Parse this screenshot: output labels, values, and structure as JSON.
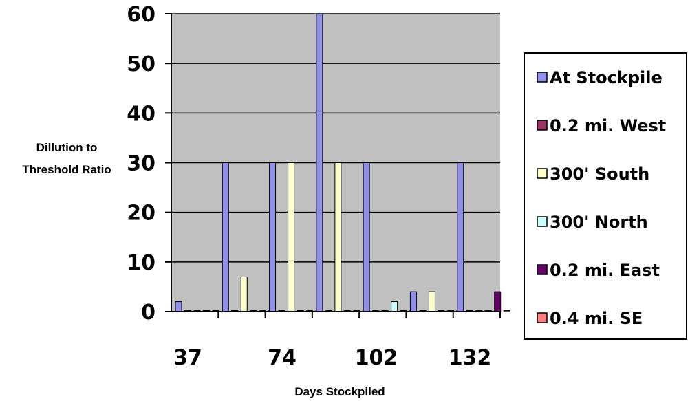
{
  "chart_data": {
    "type": "bar",
    "title": "",
    "xlabel": "Days Stockpiled",
    "ylabel": [
      "Dillution to",
      "Threshold Ratio"
    ],
    "ylim": [
      0,
      60
    ],
    "yticks": [
      0,
      10,
      20,
      30,
      40,
      50,
      60
    ],
    "xtick_labels": [
      "37",
      "74",
      "102",
      "132"
    ],
    "grid": true,
    "legend_position": "right",
    "groups": [
      "g1",
      "g2",
      "g3",
      "g4",
      "g5",
      "g6",
      "g7"
    ],
    "series": [
      {
        "name": "At Stockpile",
        "color": "#8f8fe9",
        "values": [
          2,
          30,
          30,
          60,
          30,
          4,
          30
        ]
      },
      {
        "name": "0.2 mi. West",
        "color": "#993366",
        "values": [
          0,
          0,
          0,
          0,
          0,
          0,
          0
        ]
      },
      {
        "name": "300' South",
        "color": "#ffffcc",
        "values": [
          0,
          7,
          30,
          30,
          0,
          4,
          0
        ]
      },
      {
        "name": "300' North",
        "color": "#ccffff",
        "values": [
          0,
          0,
          0,
          0,
          2,
          0,
          0
        ]
      },
      {
        "name": "0.2 mi. East",
        "color": "#660066",
        "values": [
          0,
          0,
          0,
          0,
          0,
          0,
          4
        ]
      },
      {
        "name": "0.4 mi. SE",
        "color": "#ff8080",
        "values": [
          0,
          0,
          0,
          0,
          0,
          0,
          0
        ]
      }
    ]
  }
}
